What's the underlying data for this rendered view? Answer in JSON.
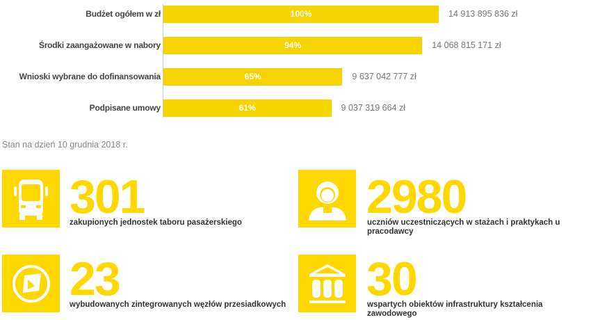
{
  "chart_data": {
    "type": "bar",
    "orientation": "horizontal",
    "categories": [
      "Budżet ogółem w zł",
      "Środki zaangażowane w nabory",
      "Wnioski wybrane do dofinansowania",
      "Podpisane umowy"
    ],
    "percent_labels": [
      "100%",
      "94%",
      "65%",
      "61%"
    ],
    "values": [
      14913895836,
      14068815171,
      9637042777,
      9037319664
    ],
    "value_labels": [
      "14 913 895 836 zł",
      "14 068 815 171 zł",
      "9 637 042 777 zł",
      "9 037 319 664 zł"
    ],
    "percents": [
      100,
      94,
      65,
      61
    ],
    "bar_color": "#F7D300",
    "grid": false
  },
  "note": "Stan na dzień 10 grudnia 2018 r.",
  "stats": [
    {
      "value": "301",
      "caption": "zakupionych jednostek taboru pasażerskiego",
      "icon": "bus-icon"
    },
    {
      "value": "2980",
      "caption": "uczniów uczestniczących w stażach i praktykach u pracodawcy",
      "icon": "worker-icon"
    },
    {
      "value": "23",
      "caption": "wybudowanych zintegrowanych węzłów przesiadkowych",
      "icon": "compass-icon"
    },
    {
      "value": "30",
      "caption": "wspartych obiektów infrastruktury kształcenia zawodowego",
      "icon": "building-icon"
    }
  ],
  "accent_color": "#FFD800"
}
